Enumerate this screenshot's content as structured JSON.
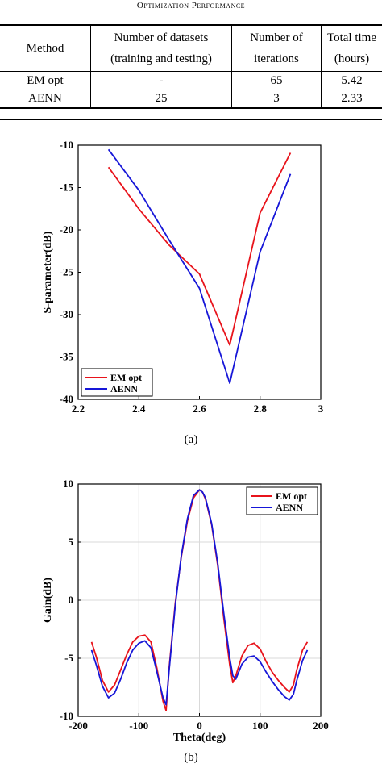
{
  "table": {
    "caption": "Optimization Performance",
    "headers": {
      "method": "Method",
      "datasets_line1": "Number of datasets",
      "datasets_line2": "(training and testing)",
      "iterations_line1": "Number of",
      "iterations_line2": "iterations",
      "time_line1": "Total time",
      "time_line2": "(hours)"
    },
    "rows": [
      {
        "method": "EM opt",
        "datasets": "-",
        "iterations": "65",
        "time": "5.42"
      },
      {
        "method": "AENN",
        "datasets": "25",
        "iterations": "3",
        "time": "2.33"
      }
    ]
  },
  "chart_data": [
    {
      "type": "line",
      "caption": "(a)",
      "ylabel": "S-parameter(dB)",
      "xlim": [
        2.2,
        3.0
      ],
      "ylim": [
        -40,
        -10
      ],
      "xticks": [
        "2.2",
        "2.4",
        "2.6",
        "2.8",
        "3"
      ],
      "yticks": [
        "-10",
        "-15",
        "-20",
        "-25",
        "-30",
        "-35",
        "-40"
      ],
      "legend": "bottom-left",
      "series": [
        {
          "name": "EM opt",
          "color": "#e8131b",
          "x": [
            2.3,
            2.4,
            2.5,
            2.6,
            2.7,
            2.8,
            2.9
          ],
          "y": [
            -12.6,
            -17.5,
            -21.8,
            -25.2,
            -33.6,
            -18.0,
            -10.9
          ]
        },
        {
          "name": "AENN",
          "color": "#1616d8",
          "x": [
            2.3,
            2.4,
            2.5,
            2.6,
            2.7,
            2.8,
            2.9
          ],
          "y": [
            -10.5,
            -15.3,
            -21.2,
            -26.9,
            -38.1,
            -22.6,
            -13.4
          ]
        }
      ]
    },
    {
      "type": "line",
      "caption": "(b)",
      "xlabel": "Theta(deg)",
      "ylabel": "Gain(dB)",
      "xlim": [
        -200,
        200
      ],
      "ylim": [
        -10,
        10
      ],
      "xticks": [
        "-200",
        "-100",
        "0",
        "100",
        "200"
      ],
      "yticks": [
        "10",
        "5",
        "0",
        "-5",
        "-10"
      ],
      "grid": true,
      "legend": "top-right",
      "series": [
        {
          "name": "EM opt",
          "color": "#e8131b",
          "x": [
            -178,
            -170,
            -160,
            -150,
            -140,
            -130,
            -120,
            -110,
            -100,
            -90,
            -80,
            -70,
            -60,
            -55,
            -50,
            -40,
            -30,
            -20,
            -10,
            0,
            5,
            10,
            20,
            30,
            40,
            50,
            55,
            60,
            70,
            80,
            90,
            100,
            110,
            120,
            130,
            140,
            148,
            155,
            160,
            170,
            178
          ],
          "y": [
            -3.6,
            -4.9,
            -6.9,
            -7.9,
            -7.3,
            -6.0,
            -4.7,
            -3.6,
            -3.1,
            -3.0,
            -3.6,
            -5.9,
            -8.7,
            -9.5,
            -5.8,
            -0.3,
            3.7,
            6.8,
            8.8,
            9.5,
            9.3,
            8.7,
            6.5,
            3.0,
            -1.5,
            -5.6,
            -7.1,
            -6.5,
            -4.8,
            -3.9,
            -3.7,
            -4.2,
            -5.3,
            -6.2,
            -6.9,
            -7.5,
            -7.9,
            -7.3,
            -6.1,
            -4.3,
            -3.6
          ]
        },
        {
          "name": "AENN",
          "color": "#1616d8",
          "x": [
            -178,
            -170,
            -160,
            -150,
            -140,
            -130,
            -120,
            -110,
            -100,
            -90,
            -80,
            -70,
            -60,
            -55,
            -50,
            -40,
            -30,
            -20,
            -10,
            0,
            5,
            10,
            20,
            30,
            40,
            50,
            55,
            60,
            70,
            80,
            90,
            100,
            110,
            120,
            130,
            140,
            148,
            155,
            160,
            170,
            178
          ],
          "y": [
            -4.3,
            -5.6,
            -7.4,
            -8.4,
            -8.0,
            -6.8,
            -5.4,
            -4.3,
            -3.7,
            -3.5,
            -4.1,
            -6.2,
            -8.4,
            -9.0,
            -6.0,
            -0.5,
            3.8,
            7.0,
            9.0,
            9.5,
            9.3,
            8.8,
            6.6,
            3.2,
            -1.1,
            -5.0,
            -6.5,
            -6.8,
            -5.5,
            -4.9,
            -4.8,
            -5.3,
            -6.2,
            -7.0,
            -7.7,
            -8.3,
            -8.6,
            -8.1,
            -7.0,
            -5.2,
            -4.3
          ]
        }
      ]
    }
  ]
}
